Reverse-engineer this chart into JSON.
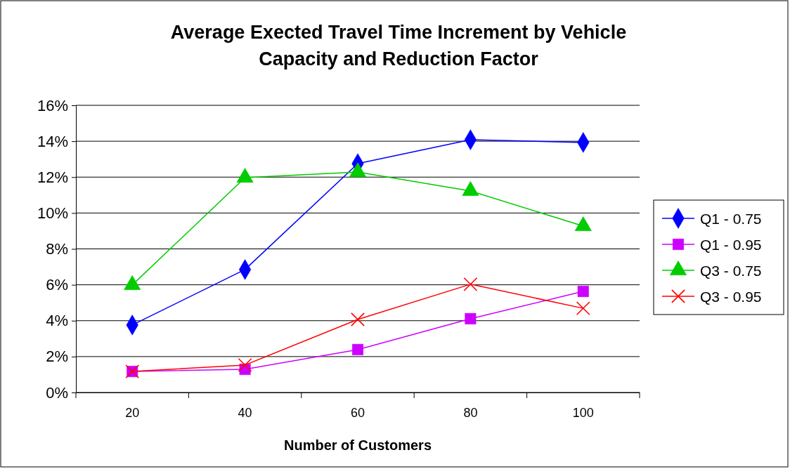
{
  "chart_data": {
    "type": "line",
    "title": "Average Exected Travel Time Increment by Vehicle Capacity and Reduction Factor",
    "xlabel": "Number of Customers",
    "categories": [
      "20",
      "40",
      "60",
      "80",
      "100"
    ],
    "series": [
      {
        "name": "Q1 - 0.75",
        "color": "#0000ff",
        "marker": "diamond",
        "values": [
          3.76,
          6.85,
          12.75,
          14.08,
          13.93
        ]
      },
      {
        "name": "Q1 - 0.95",
        "color": "#cc00ff",
        "marker": "square",
        "values": [
          1.17,
          1.29,
          2.39,
          4.11,
          5.63
        ]
      },
      {
        "name": "Q3 - 0.75",
        "color": "#00cc00",
        "marker": "triangle",
        "values": [
          5.99,
          11.97,
          12.28,
          11.23,
          9.27
        ]
      },
      {
        "name": "Q3 - 0.95",
        "color": "#ff0000",
        "marker": "cross",
        "values": [
          1.17,
          1.53,
          4.07,
          6.03,
          4.69
        ]
      }
    ],
    "ylim": [
      0,
      16
    ],
    "yticks": [
      {
        "value": 0,
        "label": "0%"
      },
      {
        "value": 2,
        "label": "2%"
      },
      {
        "value": 4,
        "label": "4%"
      },
      {
        "value": 6,
        "label": "6%"
      },
      {
        "value": 8,
        "label": "8%"
      },
      {
        "value": 10,
        "label": "10%"
      },
      {
        "value": 12,
        "label": "12%"
      },
      {
        "value": 14,
        "label": "14%"
      },
      {
        "value": 16,
        "label": "16%"
      }
    ],
    "grid": "y",
    "legend": "right"
  }
}
